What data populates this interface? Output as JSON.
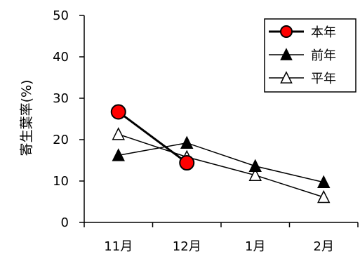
{
  "chart_data": {
    "type": "line",
    "title": "",
    "xlabel": "",
    "ylabel": "寄生葉率(%)",
    "categories": [
      "11月",
      "12月",
      "1月",
      "2月"
    ],
    "ylim": [
      0,
      50
    ],
    "yticks": [
      "0",
      "10",
      "20",
      "30",
      "40",
      "50"
    ],
    "grid": false,
    "legend_position": "top-right",
    "series": [
      {
        "name": "本年",
        "marker": "circle",
        "color": "#ff0000",
        "values": [
          26.7,
          14.4,
          null,
          null
        ]
      },
      {
        "name": "前年",
        "marker": "filled-triangle",
        "color": "#000000",
        "values": [
          16.2,
          19.2,
          13.6,
          9.7
        ]
      },
      {
        "name": "平年",
        "marker": "open-triangle",
        "color": "#000000",
        "values": [
          21.3,
          15.8,
          11.4,
          6.1
        ]
      }
    ]
  }
}
